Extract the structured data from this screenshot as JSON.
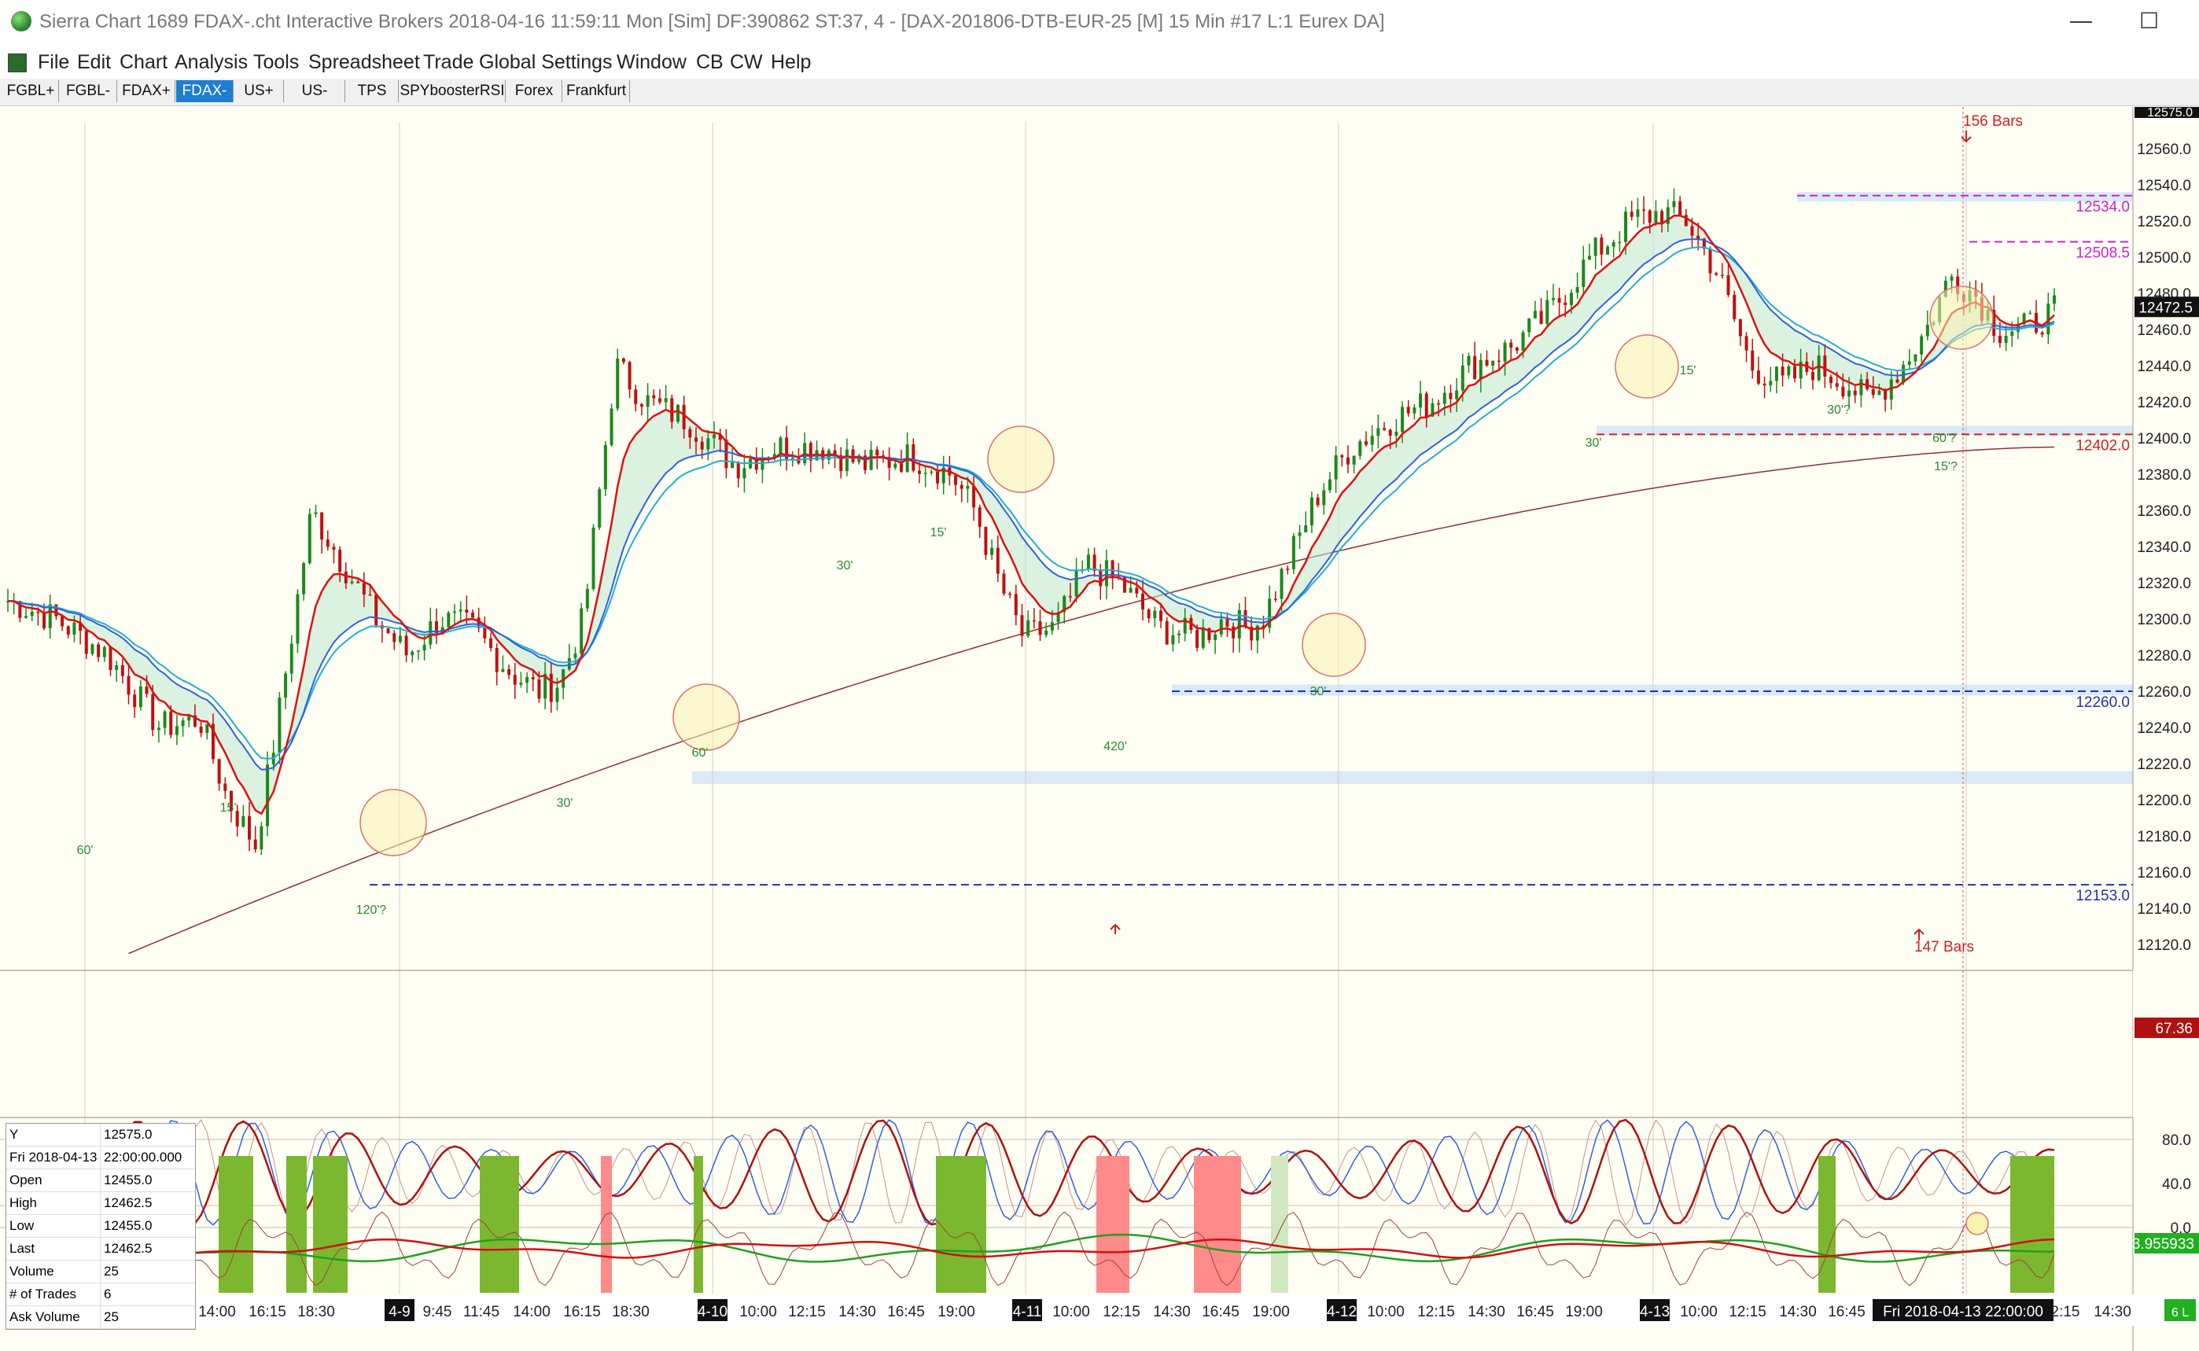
{
  "window": {
    "title": "Sierra Chart 1689 FDAX-.cht  Interactive Brokers 2018-04-16  11:59:11 Mon [Sim]  DF:390862  ST:37, 4 - [DAX-201806-DTB-EUR-25 [M]  15 Min  #17  L:1  Eurex DA]",
    "minimize_glyph": "—",
    "maximize_glyph": "☐"
  },
  "menu": [
    "File",
    "Edit",
    "Chart",
    "Analysis",
    "Tools",
    "Spreadsheet",
    "Trade",
    "Global Settings",
    "Window",
    "CB",
    "CW",
    "Help"
  ],
  "tabs": [
    {
      "label": "FGBL+",
      "active": false
    },
    {
      "label": "FGBL-",
      "active": false
    },
    {
      "label": "FDAX+",
      "active": false
    },
    {
      "label": "FDAX-",
      "active": true
    },
    {
      "label": "US+",
      "active": false
    },
    {
      "label": "US-",
      "active": false
    },
    {
      "label": "TPS",
      "active": false
    },
    {
      "label": "SPYboosterRSI",
      "active": false
    },
    {
      "label": "Forex",
      "active": false
    },
    {
      "label": "Frankfurt",
      "active": false
    }
  ],
  "price_scale": [
    "12560.0",
    "12540.0",
    "12520.0",
    "12500.0",
    "12480.0",
    "12460.0",
    "12440.0",
    "12420.0",
    "12400.0",
    "12380.0",
    "12360.0",
    "12340.0",
    "12320.0",
    "12300.0",
    "12280.0",
    "12260.0",
    "12240.0",
    "12220.0",
    "12200.0",
    "12180.0",
    "12160.0",
    "12140.0",
    "12120.0"
  ],
  "top_partial_price": "12575.0",
  "current_price": "12472.5",
  "levels": [
    {
      "label": "12534.0",
      "color": "#d020d0"
    },
    {
      "label": "12508.5",
      "color": "#d020d0"
    },
    {
      "label": "12402.0",
      "color": "#d02020"
    },
    {
      "label": "12260.0",
      "color": "#2030c0"
    },
    {
      "label": "12153.0",
      "color": "#2030c0"
    }
  ],
  "bar_count_top": "156 Bars",
  "bar_count_bottom": "147 Bars",
  "timeframe_labels": [
    "60'",
    "15'",
    "120'?",
    "30'",
    "60'",
    "30'",
    "15'",
    "420'",
    "30'",
    "30'",
    "15'",
    "30'?",
    "60'?",
    "15'?"
  ],
  "osc_scale": [
    "80.0",
    "40.0",
    "0.0"
  ],
  "osc_current": "67.36",
  "lower_current": "3.955933",
  "time_axis": [
    {
      "text": "14:00",
      "boxed": false
    },
    {
      "text": "16:15",
      "boxed": false
    },
    {
      "text": "18:30",
      "boxed": false
    },
    {
      "text": "4-9",
      "boxed": true
    },
    {
      "text": "9:45",
      "boxed": false
    },
    {
      "text": "11:45",
      "boxed": false
    },
    {
      "text": "14:00",
      "boxed": false
    },
    {
      "text": "16:15",
      "boxed": false
    },
    {
      "text": "18:30",
      "boxed": false
    },
    {
      "text": "4-10",
      "boxed": true
    },
    {
      "text": "10:00",
      "boxed": false
    },
    {
      "text": "12:15",
      "boxed": false
    },
    {
      "text": "14:30",
      "boxed": false
    },
    {
      "text": "16:45",
      "boxed": false
    },
    {
      "text": "19:00",
      "boxed": false
    },
    {
      "text": "4-11",
      "boxed": true
    },
    {
      "text": "10:00",
      "boxed": false
    },
    {
      "text": "12:15",
      "boxed": false
    },
    {
      "text": "14:30",
      "boxed": false
    },
    {
      "text": "16:45",
      "boxed": false
    },
    {
      "text": "19:00",
      "boxed": false
    },
    {
      "text": "4-12",
      "boxed": true
    },
    {
      "text": "10:00",
      "boxed": false
    },
    {
      "text": "12:15",
      "boxed": false
    },
    {
      "text": "14:30",
      "boxed": false
    },
    {
      "text": "16:45",
      "boxed": false
    },
    {
      "text": "19:00",
      "boxed": false
    },
    {
      "text": "4-13",
      "boxed": true
    },
    {
      "text": "10:00",
      "boxed": false
    },
    {
      "text": "12:15",
      "boxed": false
    },
    {
      "text": "14:30",
      "boxed": false
    },
    {
      "text": "16:45",
      "boxed": false
    },
    {
      "text": "Fri 2018-04-13  22:00:00",
      "boxed": true
    },
    {
      "text": "2:15",
      "boxed": false
    },
    {
      "text": "14:30",
      "boxed": false
    }
  ],
  "corner_badge": "6 L",
  "data_window": [
    {
      "k": "Y",
      "v": "12575.0"
    },
    {
      "k": "Fri 2018-04-13",
      "v": "22:00:00.000"
    },
    {
      "k": "Open",
      "v": "12455.0"
    },
    {
      "k": "High",
      "v": "12462.5"
    },
    {
      "k": "Low",
      "v": "12455.0"
    },
    {
      "k": "Last",
      "v": "12462.5"
    },
    {
      "k": "Volume",
      "v": "25"
    },
    {
      "k": "# of Trades",
      "v": "6"
    },
    {
      "k": "Ask Volume",
      "v": "25"
    }
  ],
  "colors": {
    "background": "#fffff4",
    "up": "#1a8a1a",
    "down": "#c01010",
    "ema_fast": "#e01010",
    "ema_blue": "#3060e0",
    "ema_cyan": "#20b0d0",
    "sma_long": "#903030",
    "green_zone": "#7cb82f",
    "red_zone": "#ff8a8a"
  }
}
